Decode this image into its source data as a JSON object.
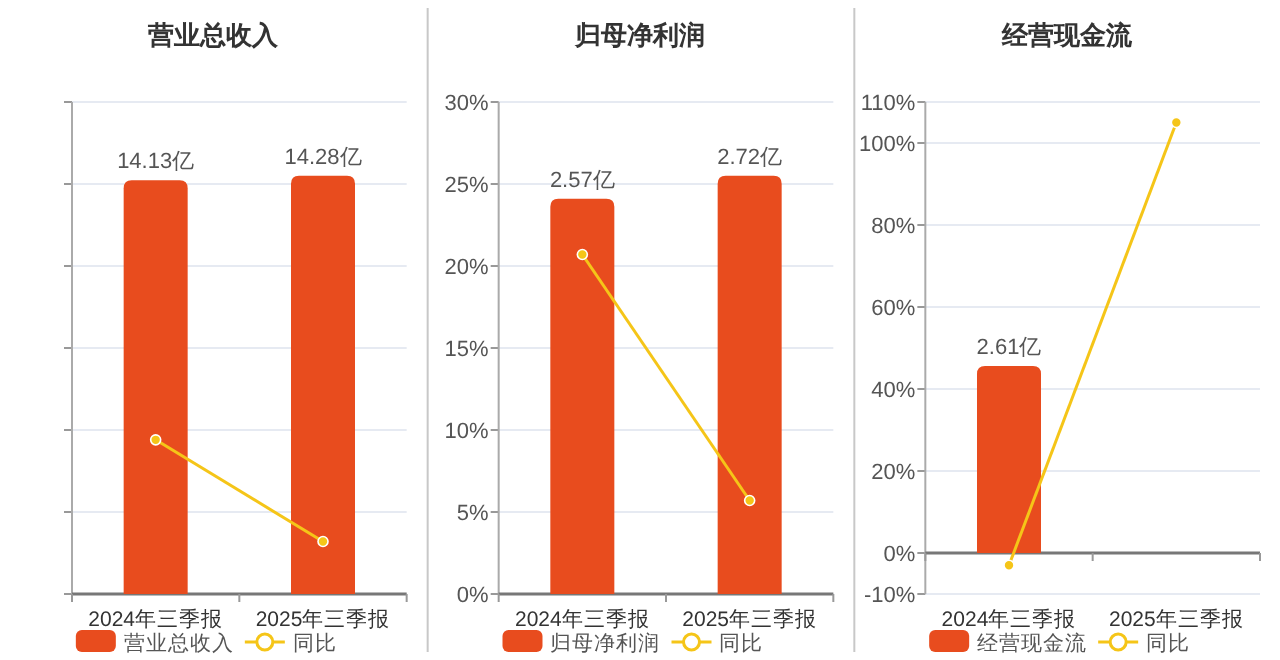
{
  "chart_data": [
    {
      "type": "bar",
      "title": "营业总收入",
      "categories": [
        "2024年三季报",
        "2025年三季报"
      ],
      "series": [
        {
          "name": "营业总收入",
          "color": "#e84c1e",
          "axis": "y2",
          "values": [
            14.13,
            14.28
          ],
          "value_labels": [
            "14.13亿",
            "14.28亿"
          ]
        },
        {
          "name": "同比",
          "type": "line",
          "color": "#f5c518",
          "marker": "circle",
          "values": [
            9.4,
            3.2
          ]
        }
      ],
      "ylim": [
        0,
        30
      ],
      "tick_labels": "x",
      "y2lim": [
        0,
        16.8
      ],
      "grid": "y",
      "legend": "bottom"
    },
    {
      "type": "bar",
      "title": "归母净利润",
      "categories": [
        "2024年三季报",
        "2025年三季报"
      ],
      "series": [
        {
          "name": "归母净利润",
          "color": "#e84c1e",
          "axis": "y2",
          "values": [
            2.57,
            2.72
          ],
          "value_labels": [
            "2.57亿",
            "2.72亿"
          ]
        },
        {
          "name": "同比",
          "type": "line",
          "color": "#f5c518",
          "marker": "circle",
          "values": [
            20.7,
            5.7
          ]
        }
      ],
      "ylim": [
        0,
        30
      ],
      "yticks": [
        {
          "value": 0,
          "label": "0%"
        },
        {
          "value": 5,
          "label": "5%"
        },
        {
          "value": 10,
          "label": "10%"
        },
        {
          "value": 15,
          "label": "15%"
        },
        {
          "value": 20,
          "label": "20%"
        },
        {
          "value": 25,
          "label": "25%"
        },
        {
          "value": 30,
          "label": "30%"
        }
      ],
      "y2lim": [
        0,
        3.2
      ],
      "grid": "y",
      "legend": "bottom"
    },
    {
      "type": "bar",
      "title": "经营现金流",
      "categories": [
        "2024年三季报",
        "2025年三季报"
      ],
      "series": [
        {
          "name": "经营现金流",
          "color": "#e84c1e",
          "axis": "y2",
          "values": [
            2.61,
            null
          ],
          "value_labels": [
            "2.61亿",
            null
          ]
        },
        {
          "name": "同比",
          "type": "line",
          "color": "#f5c518",
          "marker": "circle",
          "values": [
            -3,
            105
          ]
        }
      ],
      "ylim": [
        -10,
        110
      ],
      "yticks": [
        {
          "value": -10,
          "label": "-10%"
        },
        {
          "value": 0,
          "label": "0%"
        },
        {
          "value": 20,
          "label": "20%"
        },
        {
          "value": 40,
          "label": "40%"
        },
        {
          "value": 60,
          "label": "60%"
        },
        {
          "value": 80,
          "label": "80%"
        },
        {
          "value": 100,
          "label": "100%"
        },
        {
          "value": 110,
          "label": "110%"
        }
      ],
      "grid": "y",
      "legend": "bottom"
    }
  ]
}
